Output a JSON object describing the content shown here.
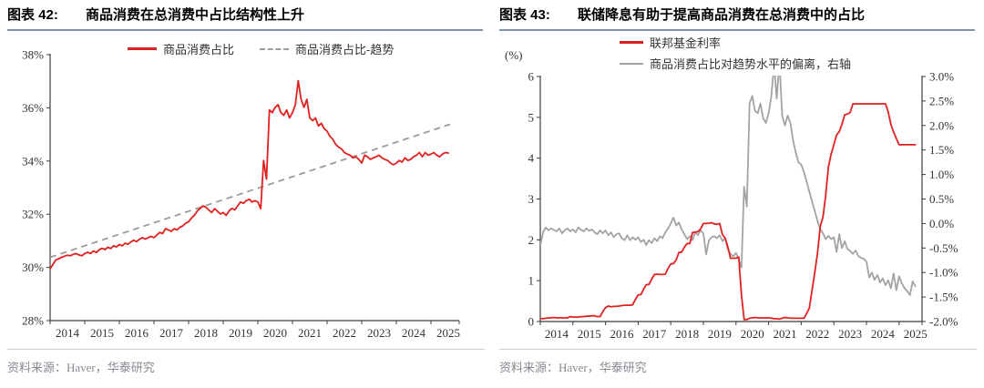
{
  "panels": [
    {
      "figure_label": "图表 42:",
      "title": "商品消费在总消费中占比结构性上升",
      "source": "资料来源：Haver，华泰研究"
    },
    {
      "figure_label": "图表 43:",
      "title": "联储降息有助于提高商品消费在总消费中的占比",
      "source": "资料来源：Haver，华泰研究"
    }
  ],
  "chart_data": [
    {
      "type": "line",
      "title": "商品消费在总消费中占比结构性上升",
      "xlabel": "",
      "ylabel": "",
      "x_base": 2014,
      "x_start": 2014.0,
      "x_interval": 0.0833333,
      "x_tick_labels": [
        "2014",
        "2015",
        "2016",
        "2017",
        "2018",
        "2019",
        "2020",
        "2021",
        "2022",
        "2023",
        "2024",
        "2025"
      ],
      "ylim": [
        28,
        38
      ],
      "y_ticks": [
        28,
        30,
        32,
        34,
        36,
        38
      ],
      "y_tick_labels": [
        "28%",
        "30%",
        "32%",
        "34%",
        "36%",
        "38%"
      ],
      "grid": false,
      "legend_position": "top",
      "series": [
        {
          "name": "商品消费占比",
          "color": "#e0211f",
          "dash": false,
          "values": [
            29.95,
            30.12,
            30.28,
            30.33,
            30.38,
            30.42,
            30.46,
            30.44,
            30.49,
            30.52,
            30.47,
            30.44,
            30.52,
            30.57,
            30.52,
            30.62,
            30.56,
            30.66,
            30.72,
            30.67,
            30.76,
            30.71,
            30.81,
            30.77,
            30.86,
            30.81,
            30.91,
            30.87,
            30.96,
            31.02,
            30.97,
            31.06,
            31.12,
            31.07,
            31.12,
            31.17,
            31.12,
            31.22,
            31.32,
            31.27,
            31.46,
            31.41,
            31.36,
            31.46,
            31.41,
            31.51,
            31.56,
            31.66,
            31.72,
            31.86,
            31.96,
            32.12,
            32.22,
            32.31,
            32.26,
            32.16,
            32.06,
            32.21,
            32.11,
            32.01,
            32.06,
            31.96,
            32.12,
            32.22,
            32.16,
            32.31,
            32.46,
            32.41,
            32.51,
            32.56,
            32.46,
            32.51,
            32.46,
            32.21,
            34.02,
            33.32,
            35.92,
            35.82,
            36.02,
            36.12,
            35.82,
            35.72,
            35.92,
            35.62,
            35.82,
            36.12,
            37.02,
            36.32,
            36.02,
            36.32,
            35.62,
            35.52,
            35.62,
            35.32,
            35.42,
            35.22,
            35.12,
            34.92,
            34.82,
            34.62,
            34.52,
            34.46,
            34.32,
            34.26,
            34.22,
            34.12,
            34.16,
            34.06,
            33.92,
            34.22,
            34.16,
            34.06,
            34.12,
            34.16,
            34.22,
            34.12,
            34.06,
            34.02,
            33.92,
            33.86,
            33.92,
            34.02,
            33.96,
            34.12,
            34.02,
            34.06,
            34.16,
            34.22,
            34.32,
            34.16,
            34.32,
            34.22,
            34.26,
            34.32,
            34.22,
            34.16,
            34.26,
            34.32,
            34.3
          ]
        },
        {
          "name": "商品消费占比-趋势",
          "color": "#9b9b9b",
          "dash": true,
          "line": {
            "x": [
              2014.0,
              2025.55
            ],
            "y": [
              30.38,
              35.38
            ]
          }
        }
      ]
    },
    {
      "type": "line",
      "title": "联储降息有助于提高商品消费在总消费中的占比",
      "left_axis_label": "(%)",
      "x_base": 2014,
      "x_start": 2014.0,
      "x_interval": 0.0833333,
      "x_tick_labels": [
        "2014",
        "2015",
        "2016",
        "2017",
        "2018",
        "2019",
        "2020",
        "2021",
        "2022",
        "2023",
        "2024",
        "2025"
      ],
      "left_ylim": [
        0,
        6
      ],
      "left_y_ticks": [
        0,
        1,
        2,
        3,
        4,
        5,
        6
      ],
      "left_y_tick_labels": [
        "0",
        "1",
        "2",
        "3",
        "4",
        "5",
        "6"
      ],
      "right_ylim": [
        -2,
        3
      ],
      "right_y_ticks": [
        3,
        2.5,
        2,
        1.5,
        1,
        0.5,
        0,
        -0.5,
        -1,
        -1.5,
        -2
      ],
      "right_y_tick_labels": [
        "3.0%",
        "2.5%",
        "2.0%",
        "1.5%",
        "1.0%",
        "0.5%",
        "0.0%",
        "-0.5%",
        "-1.0%",
        "-1.5%",
        "-2.0%"
      ],
      "grid": false,
      "legend_position": "top",
      "series": [
        {
          "name": "联邦基金利率",
          "axis": "left",
          "color": "#e0211f",
          "dash": false,
          "values": [
            0.07,
            0.07,
            0.08,
            0.09,
            0.09,
            0.1,
            0.09,
            0.09,
            0.09,
            0.09,
            0.09,
            0.12,
            0.11,
            0.11,
            0.11,
            0.12,
            0.12,
            0.13,
            0.13,
            0.14,
            0.14,
            0.12,
            0.12,
            0.24,
            0.34,
            0.38,
            0.36,
            0.37,
            0.37,
            0.38,
            0.39,
            0.4,
            0.4,
            0.4,
            0.41,
            0.54,
            0.65,
            0.66,
            0.79,
            0.9,
            0.91,
            1.04,
            1.15,
            1.16,
            1.15,
            1.15,
            1.16,
            1.3,
            1.41,
            1.42,
            1.51,
            1.69,
            1.7,
            1.82,
            1.91,
            1.91,
            2.18,
            2.19,
            2.2,
            2.27,
            2.4,
            2.4,
            2.41,
            2.42,
            2.39,
            2.38,
            2.4,
            2.13,
            2.04,
            1.83,
            1.55,
            1.55,
            1.55,
            1.58,
            0.65,
            0.05,
            0.05,
            0.08,
            0.09,
            0.1,
            0.09,
            0.09,
            0.09,
            0.09,
            0.09,
            0.08,
            0.07,
            0.07,
            0.06,
            0.08,
            0.1,
            0.09,
            0.08,
            0.08,
            0.08,
            0.08,
            0.08,
            0.08,
            0.2,
            0.33,
            0.77,
            1.21,
            1.68,
            2.33,
            2.56,
            3.08,
            3.78,
            4.1,
            4.33,
            4.57,
            4.65,
            4.83,
            5.06,
            5.08,
            5.12,
            5.33,
            5.33,
            5.33,
            5.33,
            5.33,
            5.33,
            5.33,
            5.33,
            5.33,
            5.33,
            5.33,
            5.33,
            5.33,
            5.13,
            4.83,
            4.64,
            4.48,
            4.33,
            4.33,
            4.33,
            4.33,
            4.33,
            4.33,
            4.33
          ]
        },
        {
          "name": "商品消费占比对趋势水平的偏离，右轴",
          "axis": "right",
          "color": "#a3a3a3",
          "dash": false,
          "values": [
            -0.45,
            -0.18,
            -0.08,
            -0.14,
            -0.1,
            -0.13,
            -0.16,
            -0.1,
            -0.2,
            -0.14,
            -0.1,
            -0.16,
            -0.12,
            -0.18,
            -0.08,
            -0.13,
            -0.16,
            -0.1,
            -0.15,
            -0.12,
            -0.18,
            -0.22,
            -0.14,
            -0.2,
            -0.14,
            -0.24,
            -0.18,
            -0.28,
            -0.22,
            -0.2,
            -0.3,
            -0.34,
            -0.24,
            -0.34,
            -0.28,
            -0.33,
            -0.28,
            -0.38,
            -0.33,
            -0.44,
            -0.34,
            -0.4,
            -0.3,
            -0.36,
            -0.26,
            -0.3,
            -0.18,
            -0.1,
            0.0,
            0.12,
            -0.04,
            0.02,
            -0.12,
            -0.22,
            -0.32,
            -0.26,
            -0.34,
            -0.18,
            -0.24,
            -0.14,
            -0.2,
            -0.63,
            -0.35,
            -0.28,
            -0.26,
            -0.3,
            -0.24,
            -0.36,
            -0.3,
            -0.52,
            -0.62,
            -0.67,
            -0.6,
            -0.72,
            -0.9,
            0.75,
            0.35,
            2.45,
            2.6,
            2.3,
            2.25,
            2.45,
            2.15,
            2.05,
            2.25,
            2.6,
            3.25,
            2.55,
            3.3,
            2.2,
            2.0,
            2.2,
            2.05,
            1.7,
            1.45,
            1.25,
            1.2,
            1.05,
            0.85,
            0.65,
            0.45,
            0.25,
            0.05,
            -0.12,
            -0.2,
            -0.32,
            -0.25,
            -0.32,
            -0.28,
            -0.58,
            -0.22,
            -0.5,
            -0.36,
            -0.52,
            -0.56,
            -0.62,
            -0.55,
            -0.66,
            -0.7,
            -0.72,
            -0.78,
            -1.1,
            -1.0,
            -1.15,
            -1.05,
            -1.2,
            -1.12,
            -1.26,
            -1.16,
            -1.32,
            -1.02,
            -1.36,
            -1.08,
            -1.22,
            -1.32,
            -1.38,
            -1.46,
            -1.18,
            -1.28
          ]
        }
      ]
    }
  ],
  "colors": {
    "accent_red": "#e0211f",
    "line_gray": "#a3a3a3",
    "title_rule": "#7e93aa",
    "source_text": "#85898f"
  }
}
